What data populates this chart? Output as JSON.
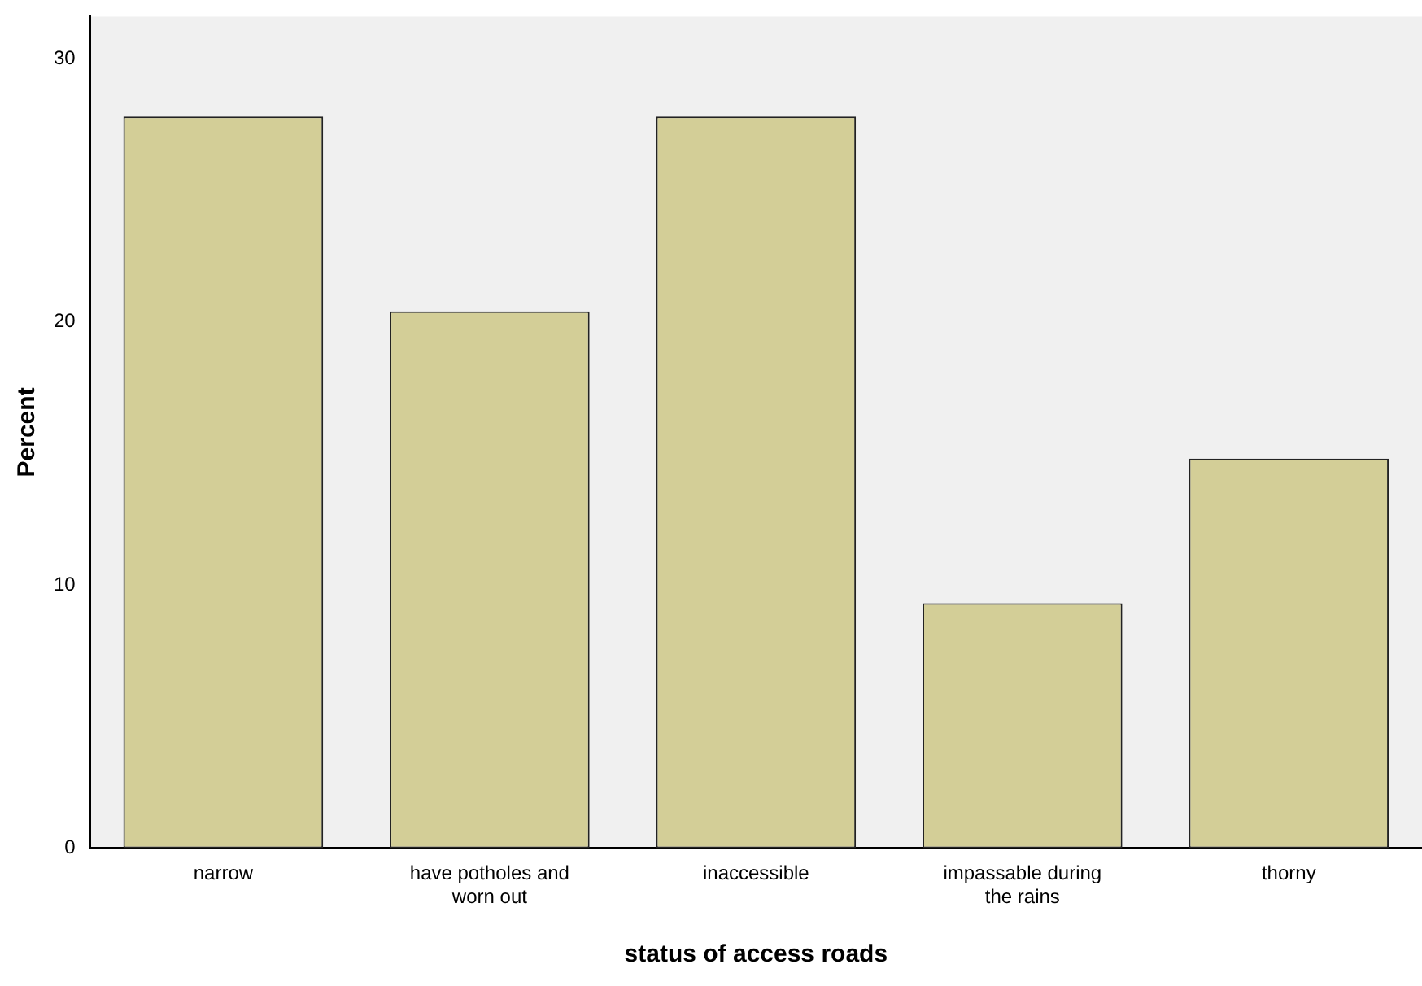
{
  "chart_data": {
    "type": "bar",
    "xlabel": "status of access roads",
    "ylabel": "Percent",
    "categories": [
      "narrow",
      "have potholes and worn out",
      "inaccessible",
      "impassable during the rains",
      "thorny"
    ],
    "values": [
      27.8,
      20.4,
      27.8,
      9.3,
      14.8
    ],
    "color": "#d3ce97",
    "ylim": [
      0,
      31.6
    ],
    "yticks": [
      0,
      10,
      20,
      30
    ],
    "grid": false,
    "legend": false
  }
}
